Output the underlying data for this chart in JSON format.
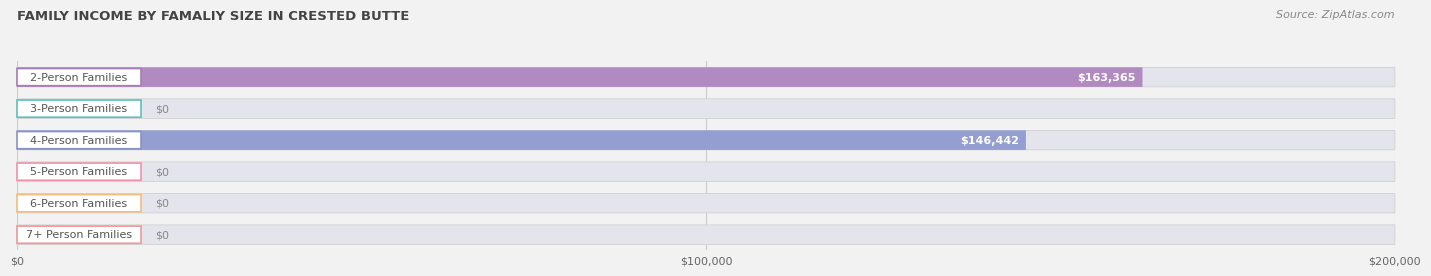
{
  "title": "FAMILY INCOME BY FAMALIY SIZE IN CRESTED BUTTE",
  "source": "Source: ZipAtlas.com",
  "categories": [
    "2-Person Families",
    "3-Person Families",
    "4-Person Families",
    "5-Person Families",
    "6-Person Families",
    "7+ Person Families"
  ],
  "values": [
    163365,
    0,
    146442,
    0,
    0,
    0
  ],
  "bar_colors": [
    "#a87bba",
    "#5ec0bf",
    "#8892cc",
    "#f093aa",
    "#f5bc7e",
    "#f09898"
  ],
  "value_labels": [
    "$163,365",
    "$0",
    "$146,442",
    "$0",
    "$0",
    "$0"
  ],
  "xlim": [
    0,
    200000
  ],
  "xticks": [
    0,
    100000,
    200000
  ],
  "xtick_labels": [
    "$0",
    "$100,000",
    "$200,000"
  ],
  "background_color": "#f2f2f2",
  "bar_background": "#e4e4ec",
  "title_fontsize": 9.5,
  "source_fontsize": 8,
  "label_fontsize": 8,
  "value_fontsize": 8
}
